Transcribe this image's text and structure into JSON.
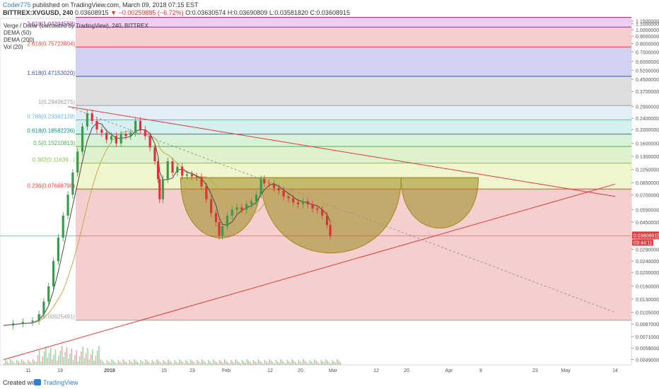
{
  "header": {
    "author": "Coder775",
    "published_text": "published on TradingView.com, March 09, 2018 07:15 EST",
    "symbol": "BITTREX:XVGUSD, 240",
    "last": "0.03608915",
    "change_arrow": "▼",
    "change": "−0.00259885 (−6.72%)",
    "o_label": "O:",
    "o_value": "0.03630574",
    "h_label": "H:",
    "h_value": "0.03690809",
    "l_label": "L:",
    "l_value": "0.03581820",
    "c_label": "C:",
    "c_value": "0.03608915"
  },
  "legend": {
    "title": "Verge / Dollar (calculated by TradingView), 240, BITTREX",
    "items": [
      "DEMA (50)",
      "DEMA (200)",
      "Vol (20)"
    ]
  },
  "footer": {
    "created_with": "Created with",
    "brand": "TradingView"
  },
  "colors": {
    "up_candle": "#3c9a4c",
    "down_candle": "#e0303a",
    "dema50": "#4a4a4a",
    "dema200": "#c8a84a",
    "trendline": "#e23b3b",
    "cup_fill": "#9a8a1e",
    "price_label_bg": "#e23b3b"
  },
  "chart_data": {
    "type": "candlestick",
    "title": "Verge / Dollar (calculated by TradingView), 240, BITTREX",
    "y_scale": "log",
    "ylim": [
      0.0045,
      1.2
    ],
    "y_ticks": [
      "1.15000000",
      "1.10000000",
      "1.00000000",
      "0.90000000",
      "0.80000000",
      "0.70000000",
      "0.60000000",
      "0.52000000",
      "0.45000000",
      "0.37000000",
      "0.29000000",
      "0.24000000",
      "0.20000000",
      "0.16000000",
      "0.13000000",
      "0.10500000",
      "0.08500000",
      "0.07000000",
      "0.05500000",
      "0.04500000",
      "0.03500000",
      "0.02900000",
      "0.02400000",
      "0.02000000",
      "0.01600000",
      "0.01300000",
      "0.01050000",
      "0.00870000",
      "0.00710000",
      "0.00590000",
      "0.00490000"
    ],
    "x_ticks": [
      "11",
      "19",
      "2018",
      "15",
      "23",
      "Feb",
      "12",
      "20",
      "Mar",
      "12",
      "20",
      "Apr",
      "9",
      "23",
      "May",
      "14"
    ],
    "current_price_label": "0.03608915",
    "countdown_label": "03:44:11",
    "fib_levels": [
      {
        "ratio": "0",
        "label": "0(0.00925491)",
        "value": 0.00925491,
        "color": "#9e9e9e"
      },
      {
        "ratio": "0.236",
        "label": "0.236(0.07668796)",
        "value": 0.07668796,
        "color": "#f44336"
      },
      {
        "ratio": "0.382",
        "label": "0.382(0.11639...)",
        "value": 0.11639,
        "color": "#8bc34a"
      },
      {
        "ratio": "0.5",
        "label": "0.5(0.15210813)",
        "value": 0.15210813,
        "color": "#4caf50"
      },
      {
        "ratio": "0.618",
        "label": "0.618(0.18582236)",
        "value": 0.18582236,
        "color": "#009688"
      },
      {
        "ratio": "0.786",
        "label": "0.786(0.23382128)",
        "value": 0.23382128,
        "color": "#64b5f6"
      },
      {
        "ratio": "1",
        "label": "1(0.29496275)",
        "value": 0.29496275,
        "color": "#9e9e9e"
      },
      {
        "ratio": "1.618",
        "label": "1.618(0.47153020)",
        "value": 0.4715302,
        "color": "#3f51b5"
      },
      {
        "ratio": "2.618",
        "label": "2.618(0.75723804)",
        "value": 0.75723804,
        "color": "#f44336"
      },
      {
        "ratio": "3.618",
        "label": "3.618(1.04294588)",
        "value": 1.04294588,
        "color": "#9c27b0"
      },
      {
        "ratio": "4.236",
        "label": "",
        "value": 1.22,
        "color": "#e91e63"
      }
    ],
    "fib_zone_colors": [
      "#f3c6c6",
      "#eef3c6",
      "#d9f0c6",
      "#d2efd0",
      "#cdeeed",
      "#ddeaf4",
      "#d8d8d8",
      "#c9c9ee",
      "#f3c6c6",
      "#e7c8ee"
    ],
    "price_path": [
      [
        0,
        0.0085
      ],
      [
        6,
        0.0088
      ],
      [
        12,
        0.009
      ],
      [
        18,
        0.0092
      ],
      [
        22,
        0.0102
      ],
      [
        25,
        0.0125
      ],
      [
        28,
        0.016
      ],
      [
        31,
        0.024
      ],
      [
        34,
        0.035
      ],
      [
        37,
        0.05
      ],
      [
        40,
        0.07
      ],
      [
        43,
        0.1
      ],
      [
        46,
        0.14
      ],
      [
        49,
        0.21
      ],
      [
        52,
        0.26
      ],
      [
        55,
        0.23
      ],
      [
        58,
        0.2
      ],
      [
        61,
        0.19
      ],
      [
        64,
        0.17
      ],
      [
        67,
        0.18
      ],
      [
        70,
        0.16
      ],
      [
        73,
        0.185
      ],
      [
        76,
        0.18
      ],
      [
        79,
        0.19
      ],
      [
        82,
        0.23
      ],
      [
        85,
        0.2
      ],
      [
        88,
        0.18
      ],
      [
        91,
        0.15
      ],
      [
        94,
        0.12
      ],
      [
        96,
        0.09
      ],
      [
        97,
        0.065
      ],
      [
        99,
        0.09
      ],
      [
        102,
        0.12
      ],
      [
        105,
        0.1
      ],
      [
        108,
        0.11
      ],
      [
        111,
        0.095
      ],
      [
        114,
        0.097
      ],
      [
        117,
        0.094
      ],
      [
        120,
        0.093
      ],
      [
        123,
        0.08
      ],
      [
        126,
        0.065
      ],
      [
        129,
        0.052
      ],
      [
        132,
        0.045
      ],
      [
        134,
        0.036
      ],
      [
        136,
        0.042
      ],
      [
        139,
        0.05
      ],
      [
        142,
        0.055
      ],
      [
        145,
        0.057
      ],
      [
        148,
        0.055
      ],
      [
        151,
        0.06
      ],
      [
        154,
        0.063
      ],
      [
        157,
        0.07
      ],
      [
        160,
        0.09
      ],
      [
        162,
        0.084
      ],
      [
        165,
        0.083
      ],
      [
        168,
        0.078
      ],
      [
        171,
        0.075
      ],
      [
        174,
        0.068
      ],
      [
        177,
        0.066
      ],
      [
        180,
        0.062
      ],
      [
        183,
        0.06
      ],
      [
        186,
        0.063
      ],
      [
        189,
        0.06
      ],
      [
        192,
        0.056
      ],
      [
        195,
        0.055
      ],
      [
        198,
        0.05
      ],
      [
        201,
        0.043
      ],
      [
        203,
        0.036
      ]
    ],
    "trend_lines": [
      {
        "from": [
          0,
          0.0049
        ],
        "to": [
          380,
          0.083
        ]
      },
      {
        "from": [
          40,
          0.29
        ],
        "to": [
          380,
          0.068
        ]
      },
      {
        "from": [
          40,
          0.29
        ],
        "to": [
          380,
          0.0105
        ],
        "dashed": true
      }
    ],
    "cup_patterns": [
      {
        "rim": [
          [
            110,
            0.092
          ],
          [
            160,
            0.092
          ]
        ],
        "bottom": 0.034
      },
      {
        "rim": [
          [
            160,
            0.092
          ],
          [
            247,
            0.092
          ]
        ],
        "bottom": 0.0265
      },
      {
        "rim": [
          [
            247,
            0.092
          ],
          [
            295,
            0.092
          ]
        ],
        "bottom": 0.04
      }
    ]
  }
}
